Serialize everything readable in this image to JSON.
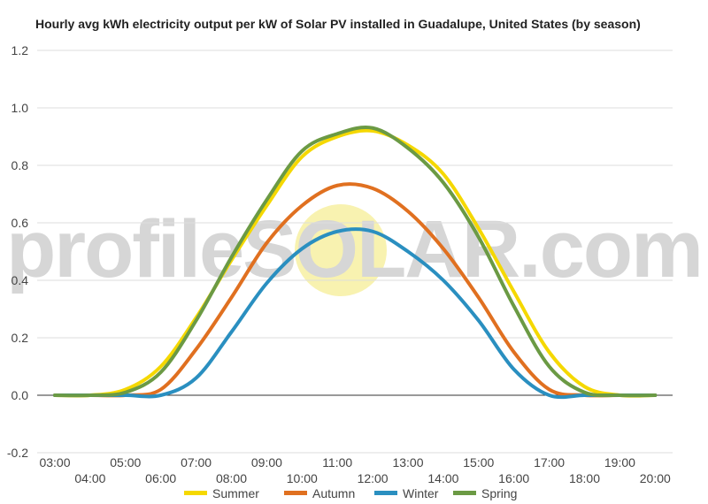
{
  "chart_data": {
    "type": "line",
    "title": "Hourly avg kWh electricity output per kW of Solar PV installed in Guadalupe, United States (by season)",
    "xlabel": "",
    "ylabel": "",
    "ylim": [
      -0.2,
      1.2
    ],
    "yticks": [
      "-0.2",
      "0.0",
      "0.2",
      "0.4",
      "0.6",
      "0.8",
      "1.0",
      "1.2"
    ],
    "grid": true,
    "legend": "bottom",
    "categories": [
      "03:00",
      "04:00",
      "05:00",
      "06:00",
      "07:00",
      "08:00",
      "09:00",
      "10:00",
      "11:00",
      "12:00",
      "13:00",
      "14:00",
      "15:00",
      "16:00",
      "17:00",
      "18:00",
      "19:00",
      "20:00"
    ],
    "series": [
      {
        "name": "Summer",
        "color": "#f5d800",
        "values": [
          0.0,
          0.0,
          0.02,
          0.1,
          0.27,
          0.47,
          0.66,
          0.83,
          0.9,
          0.92,
          0.87,
          0.77,
          0.58,
          0.36,
          0.15,
          0.03,
          0.0,
          0.0
        ]
      },
      {
        "name": "Autumn",
        "color": "#e07020",
        "values": [
          0.0,
          0.0,
          0.0,
          0.02,
          0.16,
          0.34,
          0.53,
          0.66,
          0.73,
          0.72,
          0.64,
          0.51,
          0.34,
          0.15,
          0.02,
          0.0,
          0.0,
          0.0
        ]
      },
      {
        "name": "Winter",
        "color": "#2a8fc0",
        "values": [
          0.0,
          0.0,
          0.0,
          0.0,
          0.06,
          0.22,
          0.39,
          0.51,
          0.57,
          0.57,
          0.5,
          0.4,
          0.26,
          0.09,
          0.0,
          0.0,
          0.0,
          0.0
        ]
      },
      {
        "name": "Spring",
        "color": "#6b9a44",
        "values": [
          0.0,
          0.0,
          0.01,
          0.08,
          0.26,
          0.48,
          0.68,
          0.85,
          0.91,
          0.93,
          0.86,
          0.74,
          0.55,
          0.31,
          0.1,
          0.01,
          0.0,
          0.0
        ]
      }
    ]
  },
  "watermark": {
    "text": "profileSOLAR.com",
    "sun_color": "#f8f2b0"
  }
}
